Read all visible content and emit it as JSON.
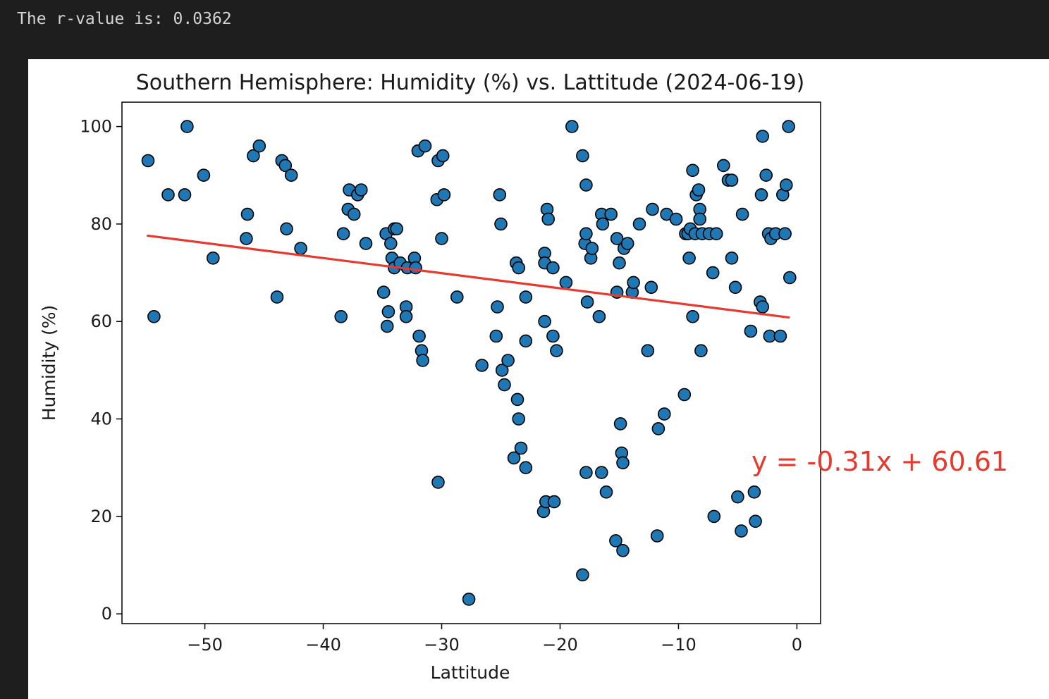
{
  "output": {
    "text": "The r-value is: 0.0362"
  },
  "chart_data": {
    "type": "scatter",
    "title": "Southern Hemisphere: Humidity (%) vs. Lattitude (2024-06-19)",
    "xlabel": "Lattitude",
    "ylabel": "Humidity (%)",
    "xlim": [
      -57,
      2
    ],
    "ylim": [
      -2,
      105
    ],
    "xticks": [
      -50,
      -40,
      -30,
      -20,
      -10,
      0
    ],
    "xtick_labels": [
      "−50",
      "−40",
      "−30",
      "−20",
      "−10",
      "0"
    ],
    "yticks": [
      0,
      20,
      40,
      60,
      80,
      100
    ],
    "ytick_labels": [
      "0",
      "20",
      "40",
      "60",
      "80",
      "100"
    ],
    "grid": false,
    "point_color": "#1f77b4",
    "point_edge_color": "#000000",
    "regression": {
      "slope": -0.31,
      "intercept": 60.61,
      "x_range": [
        -54.9,
        -0.6
      ],
      "equation": "y = -0.31x + 60.61",
      "color": "#e8392e"
    },
    "points": [
      [
        -54.8,
        93
      ],
      [
        -54.3,
        61
      ],
      [
        -53.1,
        86
      ],
      [
        -51.7,
        86
      ],
      [
        -51.5,
        100
      ],
      [
        -50.1,
        90
      ],
      [
        -49.3,
        73
      ],
      [
        -46.5,
        77
      ],
      [
        -46.4,
        82
      ],
      [
        -45.9,
        94
      ],
      [
        -45.4,
        96
      ],
      [
        -43.9,
        65
      ],
      [
        -43.5,
        93
      ],
      [
        -43.2,
        92
      ],
      [
        -43.1,
        79
      ],
      [
        -42.7,
        90
      ],
      [
        -41.9,
        75
      ],
      [
        -38.5,
        61
      ],
      [
        -38.3,
        78
      ],
      [
        -37.9,
        83
      ],
      [
        -37.8,
        87
      ],
      [
        -37.4,
        82
      ],
      [
        -37.1,
        86
      ],
      [
        -36.8,
        87
      ],
      [
        -36.4,
        76
      ],
      [
        -34.9,
        66
      ],
      [
        -34.7,
        78
      ],
      [
        -34.6,
        59
      ],
      [
        -34.5,
        62
      ],
      [
        -34.3,
        76
      ],
      [
        -34.2,
        73
      ],
      [
        -34.0,
        79
      ],
      [
        -34.0,
        71
      ],
      [
        -33.8,
        79
      ],
      [
        -33.5,
        72
      ],
      [
        -33.0,
        63
      ],
      [
        -33.0,
        61
      ],
      [
        -32.9,
        71
      ],
      [
        -32.3,
        73
      ],
      [
        -32.2,
        71
      ],
      [
        -32.0,
        95
      ],
      [
        -31.9,
        57
      ],
      [
        -31.7,
        54
      ],
      [
        -31.6,
        52
      ],
      [
        -31.4,
        96
      ],
      [
        -30.4,
        85
      ],
      [
        -30.3,
        93
      ],
      [
        -30.3,
        27
      ],
      [
        -30.0,
        77
      ],
      [
        -29.9,
        94
      ],
      [
        -29.8,
        86
      ],
      [
        -28.7,
        65
      ],
      [
        -27.7,
        3
      ],
      [
        -26.6,
        51
      ],
      [
        -25.4,
        57
      ],
      [
        -25.3,
        63
      ],
      [
        -25.1,
        86
      ],
      [
        -25.0,
        80
      ],
      [
        -24.9,
        50
      ],
      [
        -24.7,
        47
      ],
      [
        -24.4,
        52
      ],
      [
        -23.9,
        32
      ],
      [
        -23.7,
        72
      ],
      [
        -23.6,
        44
      ],
      [
        -23.5,
        40
      ],
      [
        -23.5,
        71
      ],
      [
        -23.3,
        34
      ],
      [
        -22.9,
        30
      ],
      [
        -22.9,
        65
      ],
      [
        -22.9,
        56
      ],
      [
        -21.4,
        21
      ],
      [
        -21.3,
        60
      ],
      [
        -21.3,
        74
      ],
      [
        -21.3,
        72
      ],
      [
        -21.2,
        23
      ],
      [
        -21.1,
        83
      ],
      [
        -21.0,
        81
      ],
      [
        -20.6,
        71
      ],
      [
        -20.6,
        57
      ],
      [
        -20.5,
        23
      ],
      [
        -20.3,
        54
      ],
      [
        -19.5,
        68
      ],
      [
        -19.0,
        100
      ],
      [
        -18.1,
        8
      ],
      [
        -18.1,
        94
      ],
      [
        -17.9,
        76
      ],
      [
        -17.8,
        88
      ],
      [
        -17.8,
        29
      ],
      [
        -17.8,
        78
      ],
      [
        -17.7,
        64
      ],
      [
        -17.4,
        73
      ],
      [
        -17.3,
        75
      ],
      [
        -16.7,
        61
      ],
      [
        -16.5,
        82
      ],
      [
        -16.5,
        29
      ],
      [
        -16.4,
        80
      ],
      [
        -16.1,
        25
      ],
      [
        -15.7,
        82
      ],
      [
        -15.3,
        15
      ],
      [
        -15.2,
        77
      ],
      [
        -15.2,
        66
      ],
      [
        -15.0,
        72
      ],
      [
        -14.9,
        39
      ],
      [
        -14.8,
        33
      ],
      [
        -14.7,
        13
      ],
      [
        -14.7,
        31
      ],
      [
        -14.6,
        75
      ],
      [
        -14.3,
        76
      ],
      [
        -13.9,
        66
      ],
      [
        -13.8,
        68
      ],
      [
        -13.3,
        80
      ],
      [
        -12.6,
        54
      ],
      [
        -12.3,
        67
      ],
      [
        -12.2,
        83
      ],
      [
        -11.8,
        16
      ],
      [
        -11.7,
        38
      ],
      [
        -11.2,
        41
      ],
      [
        -11.0,
        82
      ],
      [
        -10.2,
        81
      ],
      [
        -9.5,
        45
      ],
      [
        -9.4,
        78
      ],
      [
        -9.2,
        78
      ],
      [
        -9.1,
        73
      ],
      [
        -9.0,
        79
      ],
      [
        -8.8,
        91
      ],
      [
        -8.8,
        61
      ],
      [
        -8.6,
        78
      ],
      [
        -8.5,
        86
      ],
      [
        -8.3,
        87
      ],
      [
        -8.2,
        83
      ],
      [
        -8.2,
        81
      ],
      [
        -8.1,
        54
      ],
      [
        -8.0,
        78
      ],
      [
        -7.4,
        78
      ],
      [
        -7.1,
        70
      ],
      [
        -7.0,
        20
      ],
      [
        -6.8,
        78
      ],
      [
        -6.2,
        92
      ],
      [
        -5.8,
        89
      ],
      [
        -5.5,
        73
      ],
      [
        -5.5,
        89
      ],
      [
        -5.2,
        67
      ],
      [
        -5.0,
        24
      ],
      [
        -4.7,
        17
      ],
      [
        -4.6,
        82
      ],
      [
        -3.9,
        58
      ],
      [
        -3.6,
        25
      ],
      [
        -3.5,
        19
      ],
      [
        -3.1,
        64
      ],
      [
        -3.0,
        86
      ],
      [
        -2.9,
        98
      ],
      [
        -2.9,
        63
      ],
      [
        -2.6,
        90
      ],
      [
        -2.4,
        78
      ],
      [
        -2.3,
        57
      ],
      [
        -2.2,
        77
      ],
      [
        -1.8,
        78
      ],
      [
        -1.4,
        57
      ],
      [
        -1.2,
        86
      ],
      [
        -1.0,
        78
      ],
      [
        -0.9,
        88
      ],
      [
        -0.7,
        100
      ],
      [
        -0.6,
        69
      ]
    ]
  }
}
